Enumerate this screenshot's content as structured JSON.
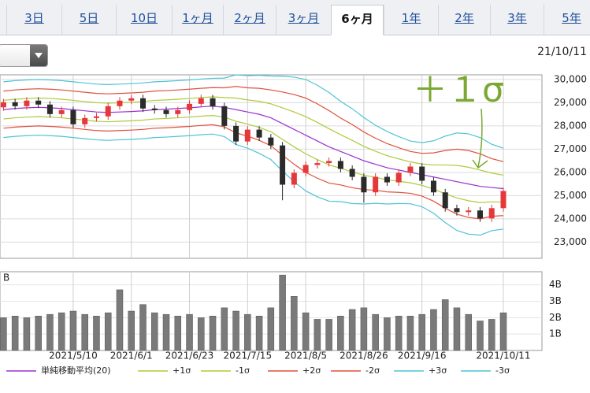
{
  "tabs": {
    "items": [
      "3日",
      "5日",
      "10日",
      "1ヶ月",
      "2ヶ月",
      "3ヶ月",
      "6ヶ月",
      "1年",
      "2年",
      "3年",
      "5年"
    ],
    "active": 6
  },
  "date": "21/10/11",
  "chart_data": [
    {
      "type": "candlestick",
      "annotation": "＋１σ",
      "up_color": "#e5383b",
      "down_color": "#2b2b2b",
      "ylim": [
        22300,
        30200
      ],
      "yticks": [
        {
          "value": 30000,
          "label": "30,000"
        },
        {
          "value": 29000,
          "label": "29,000"
        },
        {
          "value": 28000,
          "label": "28,000"
        },
        {
          "value": 27000,
          "label": "27,000"
        },
        {
          "value": 26000,
          "label": "26,000"
        },
        {
          "value": 25000,
          "label": "25,000"
        },
        {
          "value": 24000,
          "label": "24,000"
        },
        {
          "value": 23000,
          "label": "23,000"
        }
      ],
      "open": [
        28800,
        29020,
        28850,
        29090,
        28920,
        28510,
        28680,
        28070,
        28340,
        28410,
        28850,
        29090,
        29190,
        28750,
        28680,
        28510,
        28680,
        28950,
        29190,
        28850,
        28000,
        27330,
        27840,
        27500,
        27160,
        25470,
        25980,
        26320,
        26400,
        26490,
        26150,
        25810,
        25140,
        25810,
        25570,
        25980,
        26250,
        25640,
        25140,
        24460,
        24290,
        24360,
        24020,
        24460
      ],
      "high": [
        29170,
        29170,
        29240,
        29240,
        29070,
        28830,
        28830,
        28490,
        28560,
        29000,
        29240,
        29340,
        29340,
        28900,
        28830,
        28830,
        29100,
        29340,
        29340,
        29000,
        28150,
        27990,
        27990,
        27650,
        27310,
        26130,
        26470,
        26550,
        26640,
        26640,
        26300,
        25960,
        25960,
        25960,
        26130,
        26400,
        26400,
        25790,
        25290,
        24610,
        24510,
        24510,
        24610,
        25350
      ],
      "low": [
        28650,
        28700,
        28700,
        28770,
        28360,
        28360,
        27920,
        27920,
        28190,
        28260,
        28700,
        28940,
        28600,
        28530,
        28360,
        28360,
        28530,
        28800,
        28700,
        27850,
        27180,
        27180,
        27350,
        27010,
        24800,
        25320,
        25830,
        26170,
        26250,
        26000,
        25660,
        24700,
        24990,
        25420,
        25420,
        25830,
        25490,
        24990,
        24310,
        24140,
        24140,
        23870,
        23870,
        24310
      ],
      "close": [
        29020,
        28850,
        29090,
        28920,
        28510,
        28680,
        28070,
        28340,
        28410,
        28850,
        29090,
        29190,
        28750,
        28680,
        28510,
        28680,
        28950,
        29190,
        28850,
        28000,
        27330,
        27840,
        27500,
        27160,
        25470,
        25980,
        26320,
        26400,
        26490,
        26150,
        25810,
        25140,
        25810,
        25570,
        25980,
        26250,
        25640,
        25140,
        24460,
        24290,
        24360,
        24020,
        24460,
        25200
      ],
      "series": [
        {
          "name": "単純移動平均(20)",
          "color": "#9b30d0",
          "values": [
            28700,
            28750,
            28780,
            28800,
            28780,
            28750,
            28700,
            28650,
            28600,
            28580,
            28600,
            28620,
            28650,
            28700,
            28720,
            28750,
            28780,
            28820,
            28850,
            28800,
            28700,
            28600,
            28500,
            28350,
            28100,
            27850,
            27600,
            27350,
            27100,
            26900,
            26700,
            26500,
            26350,
            26200,
            26100,
            26000,
            25900,
            25800,
            25700,
            25600,
            25500,
            25400,
            25350,
            25300
          ]
        },
        {
          "name": "+1σ",
          "color": "#aecb3a",
          "values": [
            29100,
            29150,
            29180,
            29200,
            29180,
            29150,
            29100,
            29050,
            29000,
            28980,
            29000,
            29020,
            29050,
            29100,
            29120,
            29150,
            29180,
            29220,
            29250,
            29220,
            29200,
            29120,
            29060,
            28950,
            28780,
            28600,
            28400,
            28150,
            27880,
            27620,
            27380,
            27120,
            26910,
            26720,
            26580,
            26450,
            26360,
            26320,
            26320,
            26300,
            26220,
            26100,
            25970,
            25880
          ]
        },
        {
          "name": "-1σ",
          "color": "#aecb3a",
          "values": [
            28300,
            28350,
            28380,
            28400,
            28380,
            28350,
            28300,
            28250,
            28200,
            28180,
            28200,
            28220,
            28250,
            28300,
            28320,
            28350,
            28380,
            28420,
            28450,
            28380,
            28200,
            28080,
            27940,
            27750,
            27420,
            27100,
            26800,
            26550,
            26320,
            26180,
            26020,
            25880,
            25790,
            25680,
            25620,
            25550,
            25440,
            25280,
            25080,
            24900,
            24780,
            24700,
            24730,
            24720
          ]
        },
        {
          "name": "+2σ",
          "color": "#e0503c",
          "values": [
            29500,
            29550,
            29580,
            29600,
            29580,
            29550,
            29500,
            29450,
            29400,
            29380,
            29400,
            29420,
            29450,
            29500,
            29520,
            29550,
            29580,
            29620,
            29650,
            29640,
            29700,
            29640,
            29620,
            29550,
            29460,
            29350,
            29200,
            28950,
            28660,
            28340,
            28060,
            27740,
            27470,
            27240,
            27060,
            26900,
            26820,
            26840,
            26940,
            27000,
            26940,
            26800,
            26590,
            26460
          ]
        },
        {
          "name": "-2σ",
          "color": "#e0503c",
          "values": [
            27900,
            27950,
            27980,
            28000,
            27980,
            27950,
            27900,
            27850,
            27800,
            27780,
            27800,
            27820,
            27850,
            27900,
            27920,
            27950,
            27980,
            28020,
            28050,
            27960,
            27700,
            27560,
            27380,
            27150,
            26740,
            26350,
            26000,
            25750,
            25540,
            25460,
            25340,
            25260,
            25230,
            25160,
            25140,
            25100,
            24980,
            24760,
            24460,
            24200,
            24060,
            24000,
            24110,
            24140
          ]
        },
        {
          "name": "+3σ",
          "color": "#4fc3d6",
          "values": [
            29900,
            29950,
            29980,
            30000,
            29980,
            29950,
            29900,
            29850,
            29800,
            29780,
            29800,
            29820,
            29850,
            29900,
            29920,
            29950,
            29980,
            30020,
            30050,
            30060,
            30200,
            30160,
            30180,
            30150,
            30140,
            30100,
            30000,
            29750,
            29440,
            29060,
            28740,
            28360,
            28030,
            27760,
            27540,
            27350,
            27280,
            27360,
            27560,
            27700,
            27660,
            27500,
            27210,
            27040
          ]
        },
        {
          "name": "-3σ",
          "color": "#4fc3d6",
          "values": [
            27500,
            27550,
            27580,
            27600,
            27580,
            27550,
            27500,
            27450,
            27400,
            27380,
            27400,
            27420,
            27450,
            27500,
            27520,
            27550,
            27580,
            27620,
            27650,
            27540,
            27200,
            27040,
            26820,
            26550,
            26060,
            25600,
            25200,
            24950,
            24760,
            24740,
            24660,
            24640,
            24670,
            24640,
            24660,
            24650,
            24520,
            24240,
            23840,
            23500,
            23340,
            23300,
            23490,
            23560
          ]
        }
      ]
    },
    {
      "type": "bar",
      "label": "B",
      "color": "#7a7a7a",
      "ylim": [
        0,
        4.8
      ],
      "yticks": [
        {
          "value": 4,
          "label": "4B"
        },
        {
          "value": 3,
          "label": "3B"
        },
        {
          "value": 2,
          "label": "2B"
        },
        {
          "value": 1,
          "label": "1B"
        }
      ],
      "categories": [
        null,
        null,
        null,
        null,
        null,
        null,
        "2021/5/10",
        null,
        null,
        null,
        null,
        "2021/6/1",
        null,
        null,
        null,
        null,
        "2021/6/23",
        null,
        null,
        null,
        null,
        "2021/7/15",
        null,
        null,
        null,
        null,
        "2021/8/5",
        null,
        null,
        null,
        null,
        "2021/8/26",
        null,
        null,
        null,
        null,
        "2021/9/16",
        null,
        null,
        null,
        null,
        null,
        null,
        "2021/10/11"
      ],
      "values": [
        2.0,
        2.1,
        2.0,
        2.1,
        2.2,
        2.3,
        2.4,
        2.2,
        2.1,
        2.3,
        3.7,
        2.4,
        2.8,
        2.3,
        2.2,
        2.1,
        2.2,
        2.0,
        2.1,
        2.6,
        2.4,
        2.2,
        2.1,
        2.6,
        4.6,
        3.3,
        2.3,
        1.9,
        1.9,
        2.1,
        2.5,
        2.6,
        2.2,
        2.0,
        2.1,
        2.1,
        2.2,
        2.5,
        3.1,
        2.6,
        2.2,
        1.8,
        1.9,
        2.3
      ]
    }
  ]
}
